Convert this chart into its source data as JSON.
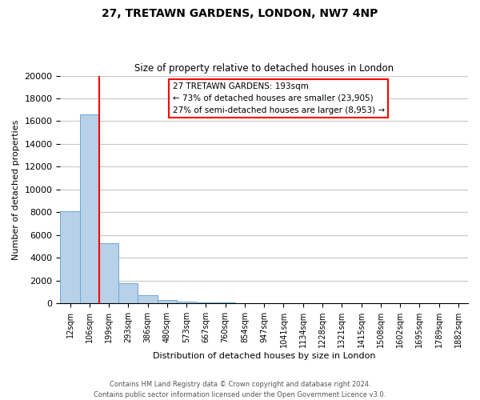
{
  "title": "27, TRETAWN GARDENS, LONDON, NW7 4NP",
  "subtitle": "Size of property relative to detached houses in London",
  "xlabel": "Distribution of detached houses by size in London",
  "ylabel": "Number of detached properties",
  "bar_color": "#b8d0e8",
  "bar_edge_color": "#6aaad4",
  "bin_labels": [
    "12sqm",
    "106sqm",
    "199sqm",
    "293sqm",
    "386sqm",
    "480sqm",
    "573sqm",
    "667sqm",
    "760sqm",
    "854sqm",
    "947sqm",
    "1041sqm",
    "1134sqm",
    "1228sqm",
    "1321sqm",
    "1415sqm",
    "1508sqm",
    "1602sqm",
    "1695sqm",
    "1789sqm",
    "1882sqm"
  ],
  "bar_heights": [
    8100,
    16600,
    5300,
    1800,
    700,
    300,
    150,
    100,
    100,
    0,
    0,
    0,
    0,
    0,
    0,
    0,
    0,
    0,
    0,
    0,
    0
  ],
  "ylim": [
    0,
    20000
  ],
  "yticks": [
    0,
    2000,
    4000,
    6000,
    8000,
    10000,
    12000,
    14000,
    16000,
    18000,
    20000
  ],
  "vline_x_index": 2,
  "property_line_label": "27 TRETAWN GARDENS: 193sqm",
  "annotation_line1": "← 73% of detached houses are smaller (23,905)",
  "annotation_line2": "27% of semi-detached houses are larger (8,953) →",
  "annotation_box_color": "white",
  "annotation_box_edgecolor": "red",
  "vline_color": "red",
  "footer_line1": "Contains HM Land Registry data © Crown copyright and database right 2024.",
  "footer_line2": "Contains public sector information licensed under the Open Government Licence v3.0.",
  "background_color": "white",
  "grid_color": "#c8c8c8"
}
